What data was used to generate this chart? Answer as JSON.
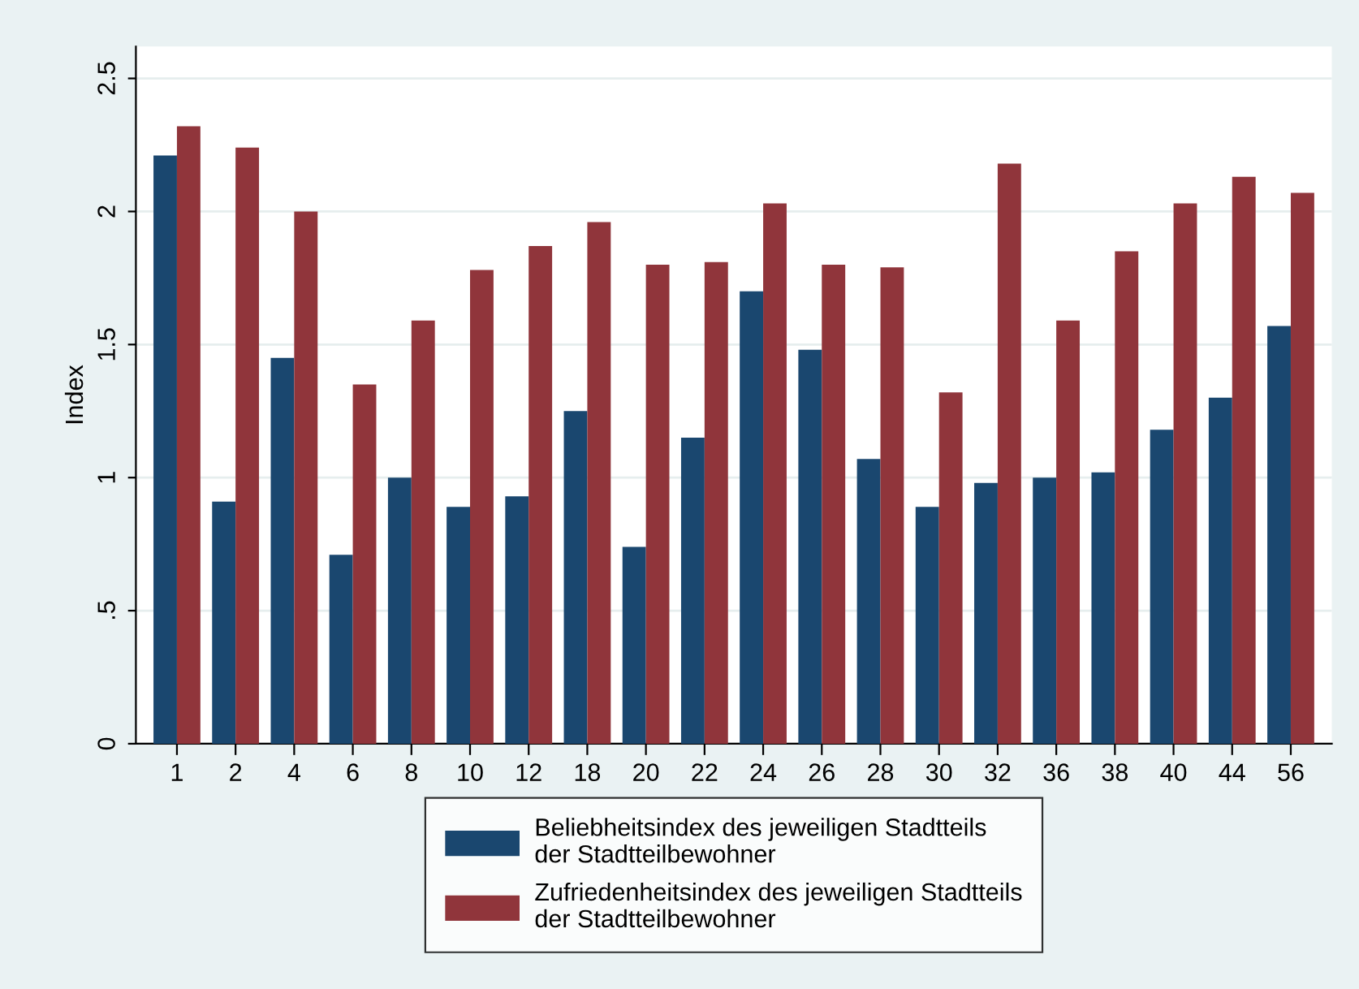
{
  "chart_data": {
    "type": "bar",
    "ylabel": "Index",
    "categories": [
      "1",
      "2",
      "4",
      "6",
      "8",
      "10",
      "12",
      "18",
      "20",
      "22",
      "24",
      "26",
      "28",
      "30",
      "32",
      "36",
      "38",
      "40",
      "44",
      "56"
    ],
    "series": [
      {
        "name": "Beliebheitsindex des jeweiligen Stadtteils\nder Stadtteilbewohner",
        "color": "#1a476f",
        "values": [
          2.21,
          0.91,
          1.45,
          0.71,
          1.0,
          0.89,
          0.93,
          1.25,
          0.74,
          1.15,
          1.7,
          1.48,
          1.07,
          0.89,
          0.98,
          1.0,
          1.02,
          1.18,
          1.3,
          1.57
        ]
      },
      {
        "name": "Zufriedenheitsindex des jeweiligen Stadtteils\nder Stadtteilbewohner",
        "color": "#90353b",
        "values": [
          2.32,
          2.24,
          2.0,
          1.35,
          1.59,
          1.78,
          1.87,
          1.96,
          1.8,
          1.81,
          2.03,
          1.8,
          1.79,
          1.32,
          2.18,
          1.59,
          1.85,
          2.03,
          2.13,
          2.07
        ]
      }
    ],
    "ylim": [
      0,
      2.62
    ],
    "yticks": [
      0,
      {
        "value": 0.5,
        "label": ".5"
      },
      1,
      1.5,
      2,
      2.5
    ],
    "grid": "y",
    "legend": "bottom"
  }
}
